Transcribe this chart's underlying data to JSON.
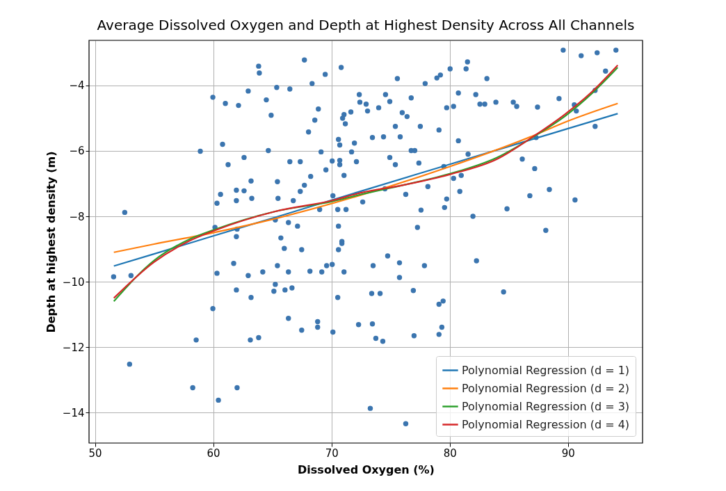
{
  "chart_data": {
    "type": "scatter",
    "title": "Average Dissolved Oxygen and Depth at Highest Density Across All Channels",
    "xlabel": "Dissolved Oxygen (%)",
    "ylabel": "Depth at highest density (m)",
    "xlim": [
      49.5,
      96.3
    ],
    "ylim": [
      -14.93,
      -2.62
    ],
    "xticks": [
      50,
      60,
      70,
      80,
      90
    ],
    "yticks": [
      -14,
      -12,
      -10,
      -8,
      -6,
      -4
    ],
    "grid": true,
    "legend": "bottom right",
    "marker": "circle",
    "line_style": "solid",
    "series": [
      {
        "color": "#3b75af",
        "x": [
          52.52,
          58.91,
          59.97,
          60.79,
          61.03,
          61.26,
          60.62,
          60.32,
          62.14,
          62.96,
          62.61,
          61.96,
          61.96,
          62.61,
          63.2,
          63.26,
          63.84,
          63.9,
          64.49,
          64.9,
          64.66,
          65.37,
          65.43,
          65.48,
          65.25,
          65.72,
          66.48,
          66.48,
          67.36,
          67.71,
          68.36,
          68.06,
          68.24,
          67.71,
          67.36,
          66.77,
          66.36,
          67.13,
          68.89,
          68.59,
          69.12,
          69.53,
          69.47,
          69.0,
          70.82,
          71.06,
          70.94,
          71.17,
          71.64,
          70.59,
          70.7,
          71.94,
          71.7,
          70.06,
          70.7,
          70.7,
          72.11,
          71.06,
          70.12,
          70.53,
          71.23,
          70.59,
          70.88,
          72.35,
          72.4,
          72.64,
          60.15,
          62.02,
          61.96,
          72.93,
          73.05,
          74.57,
          74.93,
          73.99,
          75.57,
          76.74,
          77.92,
          78.91,
          79.21,
          80.03,
          81.38,
          81.5,
          83.14,
          80.73,
          79.74,
          80.32,
          82.2,
          82.55,
          82.96,
          83.9,
          85.37,
          85.66,
          87.42,
          89.24,
          89.59,
          91.11,
          92.46,
          94.05,
          93.17,
          92.29,
          90.53,
          90.7,
          92.29,
          75.98,
          76.39,
          75.4,
          77.51,
          79.09,
          73.46,
          74.4,
          75.81,
          80.73,
          76.74,
          77.04,
          74.93,
          75.4,
          77.39,
          81.55,
          87.3,
          86.13,
          87.18,
          79.5,
          80.32,
          80.97,
          74.52,
          78.15,
          76.28,
          80.85,
          79.74,
          79.56,
          77.57,
          84.84,
          86.77,
          88.42,
          90.59,
          81.96,
          77.27,
          88.12,
          51.58,
          53.05,
          52.93,
          58.56,
          58.27,
          59.97,
          60.32,
          60.44,
          61.73,
          61.96,
          62.96,
          63.2,
          63.14,
          63.84,
          62.02,
          64.19,
          65.43,
          66.01,
          65.25,
          65.13,
          66.07,
          66.66,
          66.36,
          66.36,
          67.48,
          67.48,
          68.18,
          69.18,
          69.59,
          70.06,
          68.83,
          68.83,
          70.12,
          70.53,
          70.59,
          70.88,
          71.06,
          72.29,
          74.75,
          73.52,
          75.75,
          77.86,
          75.75,
          73.4,
          74.11,
          76.92,
          79.09,
          79.44,
          82.26,
          84.55,
          73.46,
          79.33,
          79.09,
          76.98,
          73.75,
          74.34,
          73.28,
          76.28
        ],
        "values": [
          -7.88,
          -6.01,
          -4.36,
          -5.8,
          -4.55,
          -6.42,
          -7.33,
          -7.6,
          -4.61,
          -4.17,
          -6.2,
          -7.2,
          -7.52,
          -7.22,
          -6.92,
          -7.45,
          -3.41,
          -3.62,
          -4.44,
          -4.91,
          -5.99,
          -4.06,
          -6.94,
          -7.45,
          -8.11,
          -8.66,
          -4.11,
          -6.33,
          -6.33,
          -3.22,
          -3.94,
          -5.42,
          -6.78,
          -7.05,
          -7.24,
          -7.52,
          -8.19,
          -8.3,
          -4.72,
          -5.06,
          -6.03,
          -6.58,
          -3.66,
          -7.79,
          -3.45,
          -4.89,
          -5.0,
          -5.17,
          -4.81,
          -5.65,
          -5.82,
          -5.76,
          -6.03,
          -6.31,
          -6.29,
          -6.42,
          -6.33,
          -6.75,
          -7.37,
          -7.79,
          -7.79,
          -8.3,
          -8.77,
          -4.28,
          -4.51,
          -7.56,
          -8.34,
          -8.39,
          -8.62,
          -4.57,
          -4.78,
          -4.28,
          -4.49,
          -4.68,
          -3.79,
          -4.38,
          -3.94,
          -3.77,
          -3.68,
          -3.49,
          -3.49,
          -3.28,
          -3.79,
          -4.23,
          -4.68,
          -4.64,
          -4.28,
          -4.57,
          -4.57,
          -4.51,
          -4.51,
          -4.64,
          -4.66,
          -4.4,
          -2.92,
          -3.09,
          -3.0,
          -2.92,
          -3.56,
          -4.15,
          -4.59,
          -4.78,
          -5.25,
          -4.83,
          -4.95,
          -5.25,
          -5.25,
          -5.36,
          -5.59,
          -5.57,
          -5.57,
          -5.69,
          -5.99,
          -5.99,
          -6.2,
          -6.42,
          -6.37,
          -6.1,
          -5.59,
          -6.25,
          -6.54,
          -6.48,
          -6.84,
          -6.75,
          -7.16,
          -7.09,
          -7.33,
          -7.24,
          -7.47,
          -7.73,
          -7.81,
          -7.77,
          -7.37,
          -7.18,
          -7.5,
          -8.0,
          -8.34,
          -8.43,
          -9.85,
          -9.81,
          -12.52,
          -11.78,
          -13.24,
          -10.82,
          -9.74,
          -13.62,
          -9.44,
          -10.25,
          -9.81,
          -10.48,
          -11.78,
          -11.71,
          -13.24,
          -9.7,
          -9.51,
          -8.98,
          -10.08,
          -10.29,
          -10.25,
          -10.19,
          -9.7,
          -11.12,
          -9.02,
          -11.48,
          -9.68,
          -9.7,
          -9.51,
          -9.47,
          -11.22,
          -11.39,
          -11.54,
          -10.48,
          -9.02,
          -8.83,
          -9.7,
          -11.31,
          -9.21,
          -9.51,
          -9.42,
          -9.51,
          -9.87,
          -10.36,
          -10.36,
          -10.27,
          -10.69,
          -10.59,
          -9.36,
          -10.31,
          -11.29,
          -11.39,
          -11.61,
          -11.65,
          -11.73,
          -11.82,
          -13.87,
          -14.34
        ]
      },
      {
        "type": "line",
        "marker": "none",
        "name": "Polynomial Regression (d = 1)",
        "color": "#1f77b4",
        "x": [
          51.6,
          55,
          60,
          65.25,
          72.5,
          80,
          87.3,
          89.7,
          94.2
        ],
        "values": [
          -9.52,
          -9.15,
          -8.6,
          -8.03,
          -7.23,
          -6.41,
          -5.61,
          -5.35,
          -4.86
        ]
      },
      {
        "type": "line",
        "marker": "none",
        "name": "Polynomial Regression (d = 2)",
        "color": "#ff7f0e",
        "x": [
          51.6,
          55,
          60,
          65.25,
          72.5,
          80,
          87.3,
          89.7,
          94.2
        ],
        "values": [
          -9.1,
          -8.85,
          -8.5,
          -8.07,
          -7.35,
          -6.48,
          -5.5,
          -5.13,
          -4.55
        ]
      },
      {
        "type": "line",
        "marker": "none",
        "name": "Polynomial Regression (d = 3)",
        "color": "#2ca02c",
        "x": [
          51.6,
          55,
          58,
          60,
          65.25,
          70,
          72.5,
          76,
          80,
          84,
          87.3,
          89.7,
          92,
          94.2
        ],
        "values": [
          -10.6,
          -9.35,
          -8.7,
          -8.42,
          -7.85,
          -7.55,
          -7.33,
          -7.05,
          -6.7,
          -6.2,
          -5.52,
          -4.95,
          -4.25,
          -3.45
        ]
      },
      {
        "type": "line",
        "marker": "none",
        "name": "Polynomial Regression (d = 4)",
        "color": "#d62728",
        "x": [
          51.6,
          55,
          58,
          60,
          65.25,
          70,
          72.5,
          76,
          80,
          84,
          87.3,
          89.7,
          92,
          94.2
        ],
        "values": [
          -10.5,
          -9.4,
          -8.75,
          -8.45,
          -7.85,
          -7.52,
          -7.28,
          -7.05,
          -6.72,
          -6.25,
          -5.5,
          -4.89,
          -4.2,
          -3.38
        ]
      }
    ]
  }
}
